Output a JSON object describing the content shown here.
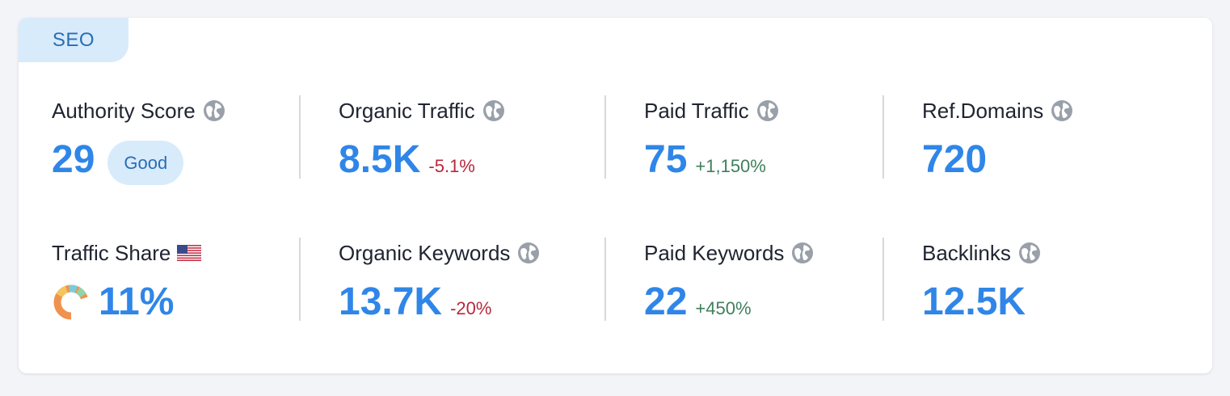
{
  "tab": {
    "label": "SEO"
  },
  "metrics": {
    "authority_score": {
      "label": "Authority Score",
      "value": "29",
      "badge": "Good"
    },
    "organic_traffic": {
      "label": "Organic Traffic",
      "value": "8.5K",
      "delta": "-5.1%"
    },
    "paid_traffic": {
      "label": "Paid Traffic",
      "value": "75",
      "delta": "+1,150%"
    },
    "ref_domains": {
      "label": "Ref.Domains",
      "value": "720"
    },
    "traffic_share": {
      "label": "Traffic Share",
      "value": "11%",
      "flag": "us-flag-icon"
    },
    "organic_keywords": {
      "label": "Organic Keywords",
      "value": "13.7K",
      "delta": "-20%"
    },
    "paid_keywords": {
      "label": "Paid Keywords",
      "value": "22",
      "delta": "+450%"
    },
    "backlinks": {
      "label": "Backlinks",
      "value": "12.5K"
    }
  },
  "colors": {
    "value_blue": "#2f86e8",
    "negative_red": "#b8283c",
    "positive_green": "#3f7f5c",
    "badge_bg": "#d8ebfb"
  }
}
